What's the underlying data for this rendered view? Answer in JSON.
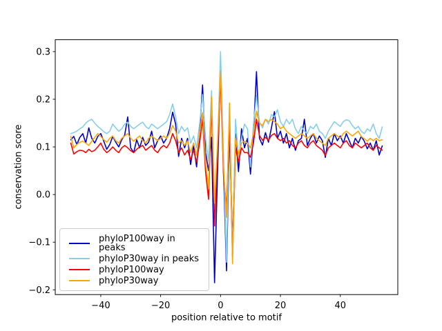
{
  "chart_data": {
    "type": "line",
    "title": "",
    "xlabel": "position relative to motif",
    "ylabel": "conservation score",
    "xlim": [
      -55.2,
      59.2
    ],
    "ylim": [
      -0.21,
      0.325
    ],
    "grid": false,
    "legend_position": "lower left",
    "x_ticks": [
      {
        "value": -40,
        "label": "−40"
      },
      {
        "value": -20,
        "label": "−20"
      },
      {
        "value": 0,
        "label": "0"
      },
      {
        "value": 20,
        "label": "20"
      },
      {
        "value": 40,
        "label": "40"
      }
    ],
    "y_ticks": [
      {
        "value": -0.2,
        "label": "−0.2"
      },
      {
        "value": -0.1,
        "label": "−0.1"
      },
      {
        "value": 0.0,
        "label": "0.0"
      },
      {
        "value": 0.1,
        "label": "0.1"
      },
      {
        "value": 0.2,
        "label": "0.2"
      },
      {
        "value": 0.3,
        "label": "0.3"
      }
    ],
    "x": [
      -50,
      -49,
      -48,
      -47,
      -46,
      -45,
      -44,
      -43,
      -42,
      -41,
      -40,
      -39,
      -38,
      -37,
      -36,
      -35,
      -34,
      -33,
      -32,
      -31,
      -30,
      -29,
      -28,
      -27,
      -26,
      -25,
      -24,
      -23,
      -22,
      -21,
      -20,
      -19,
      -18,
      -17,
      -16,
      -15,
      -14,
      -13,
      -12,
      -11,
      -10,
      -9,
      -8,
      -7,
      -6,
      -5,
      -4,
      -3,
      -2,
      -1,
      0,
      1,
      2,
      3,
      4,
      5,
      6,
      7,
      8,
      9,
      10,
      11,
      12,
      13,
      14,
      15,
      16,
      17,
      18,
      19,
      20,
      21,
      22,
      23,
      24,
      25,
      26,
      27,
      28,
      29,
      30,
      31,
      32,
      33,
      34,
      35,
      36,
      37,
      38,
      39,
      40,
      41,
      42,
      43,
      44,
      45,
      46,
      47,
      48,
      49,
      50,
      51,
      52,
      53,
      54
    ],
    "series": [
      {
        "name": "phyloP100way in peaks",
        "color": "#0000cd",
        "values": [
          0.115,
          0.122,
          0.105,
          0.12,
          0.128,
          0.108,
          0.14,
          0.118,
          0.108,
          0.122,
          0.128,
          0.112,
          0.095,
          0.105,
          0.122,
          0.11,
          0.1,
          0.115,
          0.125,
          0.163,
          0.098,
          0.088,
          0.115,
          0.098,
          0.12,
          0.103,
          0.11,
          0.133,
          0.098,
          0.113,
          0.123,
          0.108,
          0.118,
          0.138,
          0.173,
          0.148,
          0.08,
          0.118,
          0.098,
          0.118,
          0.063,
          0.103,
          0.058,
          0.128,
          0.23,
          0.088,
          0.05,
          0.12,
          -0.185,
          0.048,
          0.27,
          0.05,
          -0.16,
          0.14,
          -0.108,
          0.128,
          0.048,
          0.138,
          0.098,
          0.118,
          0.043,
          0.128,
          0.258,
          0.118,
          0.104,
          0.13,
          0.11,
          0.14,
          0.174,
          0.118,
          0.133,
          0.108,
          0.128,
          0.098,
          0.118,
          0.093,
          0.113,
          0.118,
          0.158,
          0.103,
          0.118,
          0.128,
          0.108,
          0.123,
          0.113,
          0.078,
          0.118,
          0.103,
          0.128,
          0.113,
          0.123,
          0.108,
          0.128,
          0.113,
          0.098,
          0.118,
          0.108,
          0.122,
          0.112,
          0.096,
          0.108,
          0.093,
          0.113,
          0.083,
          0.102
        ]
      },
      {
        "name": "phyloP30way in peaks",
        "color": "#87ceeb",
        "values": [
          0.128,
          0.13,
          0.133,
          0.138,
          0.142,
          0.15,
          0.155,
          0.158,
          0.15,
          0.143,
          0.138,
          0.132,
          0.128,
          0.133,
          0.148,
          0.14,
          0.133,
          0.138,
          0.148,
          0.152,
          0.143,
          0.138,
          0.143,
          0.148,
          0.152,
          0.143,
          0.138,
          0.148,
          0.143,
          0.138,
          0.143,
          0.148,
          0.153,
          0.168,
          0.19,
          0.163,
          0.128,
          0.143,
          0.133,
          0.14,
          0.108,
          0.123,
          0.098,
          0.148,
          0.21,
          0.118,
          0.07,
          0.218,
          -0.055,
          0.098,
          0.3,
          0.08,
          -0.142,
          0.185,
          -0.128,
          0.158,
          0.078,
          0.118,
          0.148,
          0.138,
          0.058,
          0.148,
          0.208,
          0.152,
          0.14,
          0.158,
          0.148,
          0.168,
          0.163,
          0.178,
          0.153,
          0.143,
          0.158,
          0.148,
          0.158,
          0.138,
          0.128,
          0.143,
          0.133,
          0.128,
          0.143,
          0.138,
          0.148,
          0.133,
          0.128,
          0.118,
          0.133,
          0.143,
          0.153,
          0.148,
          0.143,
          0.153,
          0.157,
          0.155,
          0.145,
          0.138,
          0.143,
          0.133,
          0.128,
          0.138,
          0.133,
          0.148,
          0.128,
          0.118,
          0.142
        ]
      },
      {
        "name": "phyloP100way",
        "color": "#ff0000",
        "values": [
          0.108,
          0.085,
          0.09,
          0.093,
          0.092,
          0.088,
          0.095,
          0.09,
          0.093,
          0.1,
          0.108,
          0.095,
          0.088,
          0.093,
          0.1,
          0.093,
          0.088,
          0.098,
          0.103,
          0.098,
          0.092,
          0.088,
          0.095,
          0.1,
          0.103,
          0.093,
          0.098,
          0.103,
          0.093,
          0.088,
          0.098,
          0.103,
          0.098,
          0.108,
          0.128,
          0.113,
          0.088,
          0.098,
          0.083,
          0.093,
          0.073,
          0.093,
          0.068,
          0.108,
          0.158,
          0.048,
          -0.01,
          0.19,
          -0.066,
          0.088,
          0.245,
          0.04,
          -0.028,
          0.16,
          -0.132,
          0.098,
          0.068,
          0.098,
          0.088,
          0.088,
          0.078,
          0.108,
          0.158,
          0.124,
          0.114,
          0.12,
          0.114,
          0.124,
          0.128,
          0.118,
          0.113,
          0.118,
          0.108,
          0.113,
          0.103,
          0.098,
          0.108,
          0.113,
          0.103,
          0.098,
          0.108,
          0.113,
          0.103,
          0.098,
          0.093,
          0.082,
          0.098,
          0.103,
          0.108,
          0.103,
          0.098,
          0.108,
          0.113,
          0.103,
          0.098,
          0.108,
          0.103,
          0.098,
          0.103,
          0.108,
          0.098,
          0.093,
          0.103,
          0.098,
          0.093
        ]
      },
      {
        "name": "phyloP30way",
        "color": "#ffa500",
        "values": [
          0.122,
          0.098,
          0.105,
          0.11,
          0.112,
          0.108,
          0.103,
          0.112,
          0.12,
          0.128,
          0.122,
          0.115,
          0.11,
          0.118,
          0.123,
          0.113,
          0.108,
          0.118,
          0.123,
          0.128,
          0.118,
          0.112,
          0.118,
          0.123,
          0.113,
          0.108,
          0.118,
          0.123,
          0.118,
          0.113,
          0.118,
          0.123,
          0.118,
          0.128,
          0.145,
          0.133,
          0.108,
          0.113,
          0.103,
          0.113,
          0.088,
          0.108,
          0.083,
          0.128,
          0.172,
          0.068,
          0.012,
          0.205,
          -0.018,
          0.108,
          0.258,
          0.058,
          -0.048,
          0.192,
          -0.145,
          0.118,
          0.082,
          0.108,
          0.112,
          0.108,
          0.098,
          0.128,
          0.175,
          0.15,
          0.145,
          0.158,
          0.153,
          0.158,
          0.153,
          0.148,
          0.138,
          0.143,
          0.133,
          0.128,
          0.123,
          0.118,
          0.123,
          0.128,
          0.123,
          0.118,
          0.123,
          0.128,
          0.118,
          0.113,
          0.108,
          0.103,
          0.118,
          0.123,
          0.128,
          0.123,
          0.118,
          0.128,
          0.133,
          0.128,
          0.123,
          0.128,
          0.133,
          0.122,
          0.117,
          0.112,
          0.118,
          0.113,
          0.118,
          0.113,
          0.115
        ]
      }
    ]
  }
}
